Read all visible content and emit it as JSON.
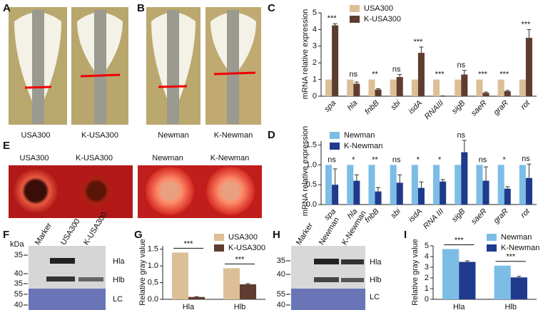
{
  "panels": {
    "A": {
      "label": "A",
      "captions": [
        "USA300",
        "K-USA300"
      ]
    },
    "B": {
      "label": "B",
      "captions": [
        "Newman",
        "K-Newman"
      ]
    },
    "E": {
      "label": "E",
      "captions": [
        "USA300",
        "K-USA300",
        "Newman",
        "K-Newman"
      ]
    },
    "F": {
      "label": "F",
      "kda": "kDa",
      "lanes": [
        "Marker",
        "USA300",
        "K-USA300"
      ],
      "markers": [
        "35",
        "40",
        "35",
        "55",
        "40"
      ],
      "bands": [
        "Hla",
        "Hlb",
        "LC"
      ]
    },
    "H": {
      "label": "H",
      "lanes": [
        "Marker",
        "Newman",
        "K-Newman"
      ],
      "markers": [
        "35",
        "40",
        "55",
        "40"
      ],
      "bands": [
        "Hla",
        "Hlb",
        "LC"
      ]
    }
  },
  "chart_data": [
    {
      "type": "bar",
      "label": "C",
      "ylabel": "mRNA relative expression",
      "categories": [
        "spa",
        "hla",
        "fnbB",
        "sbi",
        "isdA",
        "RNAIII",
        "sigB",
        "saeR",
        "graR",
        "rot"
      ],
      "series": [
        {
          "name": "USA300",
          "color": "#dcbf96",
          "values": [
            1,
            1,
            1,
            1,
            1,
            1,
            1,
            1,
            1,
            1
          ]
        },
        {
          "name": "K-USA300",
          "color": "#5e3d30",
          "values": [
            4.25,
            0.75,
            0.4,
            1.15,
            2.6,
            0.02,
            1.3,
            0.2,
            0.3,
            3.5
          ],
          "errors": [
            0.1,
            0.1,
            0.05,
            0.15,
            0.35,
            0,
            0.25,
            0.05,
            0.05,
            0.5
          ]
        }
      ],
      "annotations": [
        "***",
        "ns",
        "**",
        "ns",
        "***",
        "***",
        "ns",
        "***",
        "***",
        "***"
      ],
      "ylim": [
        0,
        5
      ],
      "yticks": [
        0,
        1,
        2,
        3,
        4,
        5
      ]
    },
    {
      "type": "bar",
      "label": "D",
      "ylabel": "mRNA relative expression",
      "categories": [
        "spa",
        "hla",
        "fnbB",
        "sbi",
        "isdA",
        "RNA III",
        "sigB",
        "saeR",
        "graR",
        "rot"
      ],
      "series": [
        {
          "name": "Newman",
          "color": "#7cbde6",
          "values": [
            1,
            1,
            1,
            1,
            1,
            1,
            1,
            1,
            1,
            1
          ]
        },
        {
          "name": "K-Newman",
          "color": "#1f3a8c",
          "values": [
            0.5,
            0.6,
            0.33,
            0.55,
            0.42,
            0.58,
            1.32,
            0.6,
            0.4,
            0.67
          ],
          "errors": [
            0.4,
            0.15,
            0.1,
            0.2,
            0.15,
            0.05,
            0.3,
            0.35,
            0.05,
            0.35
          ]
        }
      ],
      "annotations": [
        "ns",
        "*",
        "**",
        "ns",
        "*",
        "*",
        "ns",
        "ns",
        "*",
        "ns"
      ],
      "ylim": [
        0,
        1.6
      ],
      "yticks": [
        {
          "value": 0,
          "label": "0.0"
        },
        {
          "value": 0.5,
          "label": "0.5"
        },
        {
          "value": 1,
          "label": "1.0"
        },
        {
          "value": 1.5,
          "label": "1.5"
        }
      ]
    },
    {
      "type": "bar",
      "label": "G",
      "ylabel": "Relative gray value",
      "categories": [
        "Hla",
        "Hlb"
      ],
      "series": [
        {
          "name": "USA300",
          "color": "#dcbf96",
          "values": [
            1.4,
            0.93
          ]
        },
        {
          "name": "K-USA300",
          "color": "#5e3d30",
          "values": [
            0.07,
            0.45
          ],
          "errors": [
            0.01,
            0.02
          ]
        }
      ],
      "annotations": [
        "***",
        "***"
      ],
      "ylim": [
        0,
        1.6
      ],
      "yticks": [
        {
          "value": 0,
          "label": "0.0"
        },
        {
          "value": 0.5,
          "label": "0.5"
        },
        {
          "value": 1,
          "label": "1.0"
        },
        {
          "value": 1.5,
          "label": "1.5"
        }
      ]
    },
    {
      "type": "bar",
      "label": "I",
      "ylabel": "Relative gray value",
      "categories": [
        "Hla",
        "Hlb"
      ],
      "series": [
        {
          "name": "Newman",
          "color": "#7cbde6",
          "values": [
            4.7,
            3.15
          ]
        },
        {
          "name": "K-Newman",
          "color": "#1f3a8c",
          "values": [
            3.5,
            2.05
          ],
          "errors": [
            0.1,
            0.1
          ]
        }
      ],
      "annotations": [
        "***",
        "***"
      ],
      "ylim": [
        0,
        5
      ],
      "yticks": [
        0,
        1,
        2,
        3,
        4,
        5
      ]
    }
  ]
}
